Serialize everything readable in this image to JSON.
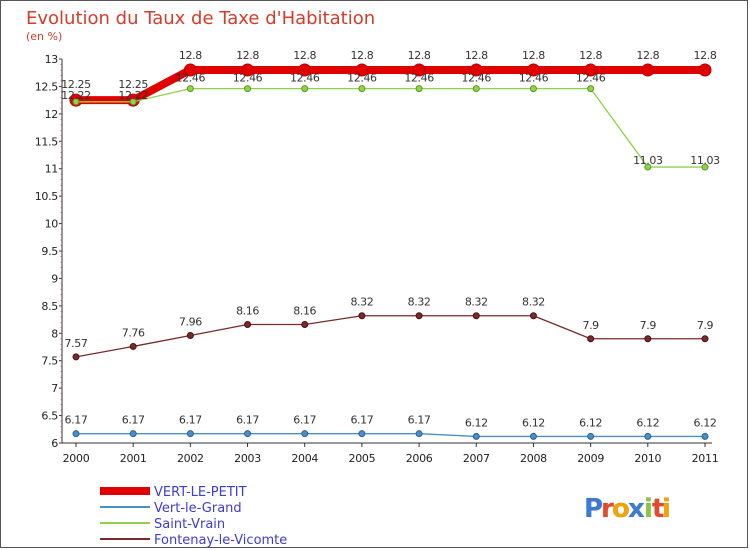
{
  "chart_data": {
    "type": "line",
    "title": "Evolution du Taux de Taxe d'Habitation",
    "unit_label": "(en %)",
    "x": [
      "2000",
      "2001",
      "2002",
      "2003",
      "2004",
      "2005",
      "2006",
      "2007",
      "2008",
      "2009",
      "2010",
      "2011"
    ],
    "ylim": [
      6,
      13
    ],
    "yticks": [
      "6",
      "6.5",
      "7",
      "7.5",
      "8",
      "8.5",
      "9",
      "9.5",
      "10",
      "10.5",
      "11",
      "11.5",
      "12",
      "12.5",
      "13"
    ],
    "grid": false,
    "legend_position": "bottom-left",
    "series": [
      {
        "name": "VERT-LE-PETIT",
        "color": "#e00000",
        "values": [
          12.25,
          12.25,
          12.8,
          12.8,
          12.8,
          12.8,
          12.8,
          12.8,
          12.8,
          12.8,
          12.8,
          12.8
        ],
        "labels": [
          "12.25",
          "12.25",
          "12.8",
          "12.8",
          "12.8",
          "12.8",
          "12.8",
          "12.8",
          "12.8",
          "12.8",
          "12.8",
          "12.8"
        ]
      },
      {
        "name": "Vert-le-Grand",
        "color": "#4b8fc9",
        "values": [
          6.17,
          6.17,
          6.17,
          6.17,
          6.17,
          6.17,
          6.17,
          6.12,
          6.12,
          6.12,
          6.12,
          6.12
        ],
        "labels": [
          "6.17",
          "6.17",
          "6.17",
          "6.17",
          "6.17",
          "6.17",
          "6.17",
          "6.12",
          "6.12",
          "6.12",
          "6.12",
          "6.12"
        ]
      },
      {
        "name": "Saint-Vrain",
        "color": "#8fd34a",
        "values": [
          12.22,
          12.22,
          12.46,
          12.46,
          12.46,
          12.46,
          12.46,
          12.46,
          12.46,
          12.46,
          11.03,
          11.03
        ],
        "labels": [
          "12.22",
          "12.22",
          "12.46",
          "12.46",
          "12.46",
          "12.46",
          "12.46",
          "12.46",
          "12.46",
          "12.46",
          "11.03",
          "11.03"
        ]
      },
      {
        "name": "Fontenay-le-Vicomte",
        "color": "#7a2a2a",
        "values": [
          7.57,
          7.76,
          7.96,
          8.16,
          8.16,
          8.32,
          8.32,
          8.32,
          8.32,
          7.9,
          7.9,
          7.9
        ],
        "labels": [
          "7.57",
          "7.76",
          "7.96",
          "8.16",
          "8.16",
          "8.32",
          "8.32",
          "8.32",
          "8.32",
          "7.9",
          "7.9",
          "7.9"
        ]
      }
    ]
  },
  "logo": {
    "text": "Proxiti",
    "letters": [
      "P",
      "r",
      "o",
      "x",
      "i",
      "t",
      "i"
    ],
    "colors": [
      "#3b7bd6",
      "#e8492b",
      "#f4a300",
      "#3b7bd6",
      "#8cc63f",
      "#e8492b",
      "#f4a300"
    ]
  }
}
